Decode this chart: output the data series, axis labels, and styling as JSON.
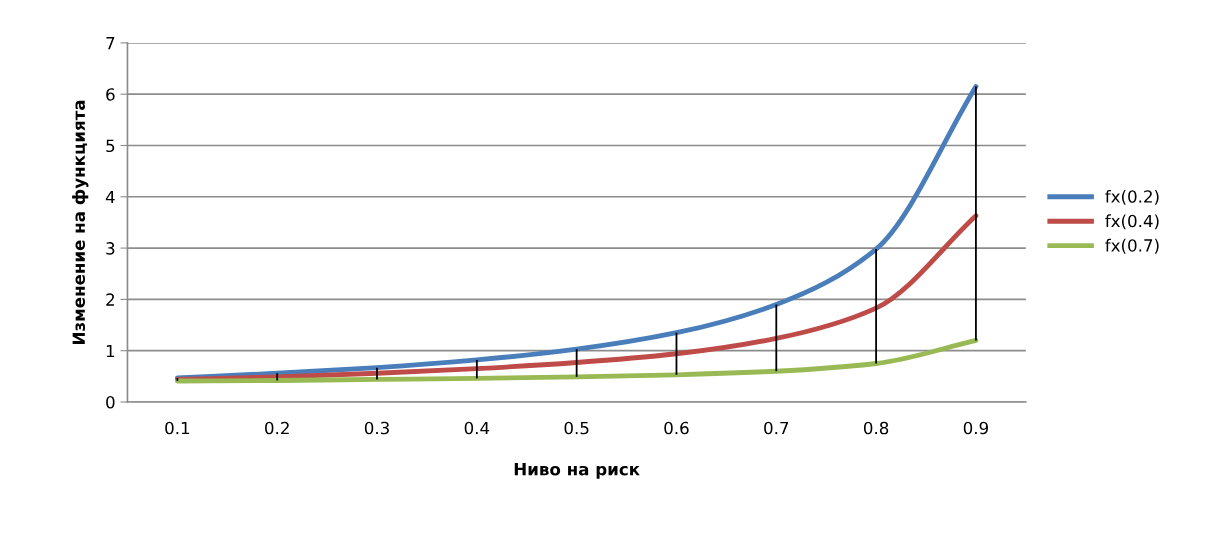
{
  "chart_data": {
    "type": "line",
    "xlabel": "Ниво на риск",
    "ylabel": "Изменение на функцията",
    "categories": [
      "0.1",
      "0.2",
      "0.3",
      "0.4",
      "0.5",
      "0.6",
      "0.7",
      "0.8",
      "0.9"
    ],
    "series": [
      {
        "name": "fx(0.2)",
        "color": "#4a7ebb",
        "values": [
          0.47,
          0.56,
          0.67,
          0.82,
          1.03,
          1.35,
          1.9,
          2.98,
          6.15
        ],
        "errors": [
          [
            0.41,
            0.47
          ],
          [
            0.42,
            0.56
          ],
          [
            0.44,
            0.67
          ],
          [
            0.46,
            0.82
          ],
          [
            0.49,
            1.03
          ],
          [
            0.53,
            1.35
          ],
          [
            0.6,
            1.9
          ],
          [
            0.75,
            2.98
          ],
          [
            1.2,
            6.15
          ]
        ]
      },
      {
        "name": "fx(0.4)",
        "color": "#be4b48",
        "values": [
          0.44,
          0.49,
          0.56,
          0.65,
          0.77,
          0.94,
          1.24,
          1.83,
          3.63
        ]
      },
      {
        "name": "fx(0.7)",
        "color": "#98b954",
        "values": [
          0.41,
          0.42,
          0.44,
          0.46,
          0.49,
          0.53,
          0.6,
          0.75,
          1.2
        ]
      }
    ],
    "ylim": [
      0,
      7
    ],
    "yticks": [
      0,
      1,
      2,
      3,
      4,
      5,
      6,
      7
    ],
    "grid": "y",
    "legend": "right",
    "marker": "none",
    "line_style": "solid"
  }
}
